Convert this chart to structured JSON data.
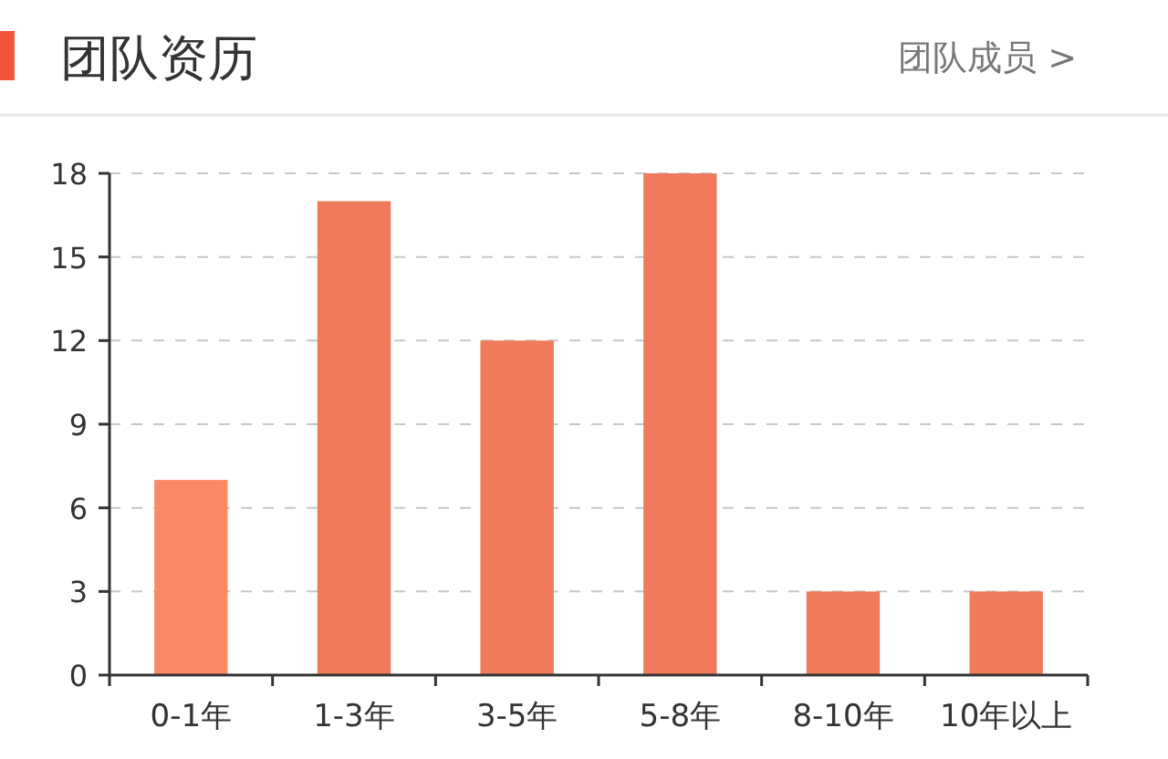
{
  "chart_data": {
    "type": "bar",
    "title": "团队资历",
    "annotations": [
      "团队成员 >"
    ],
    "categories": [
      "0-1年",
      "1-3年",
      "3-5年",
      "5-8年",
      "8-10年",
      "10年以上"
    ],
    "values": [
      7,
      17,
      12,
      18,
      3,
      3
    ],
    "colors": [
      "#fb8867",
      "#f07b5c",
      "#f07b5c",
      "#f07b5c",
      "#f07b5c",
      "#f07b5c"
    ],
    "ylim": [
      0,
      18
    ],
    "yticks": [
      0,
      3,
      6,
      9,
      12,
      15,
      18
    ],
    "grid": "y"
  }
}
